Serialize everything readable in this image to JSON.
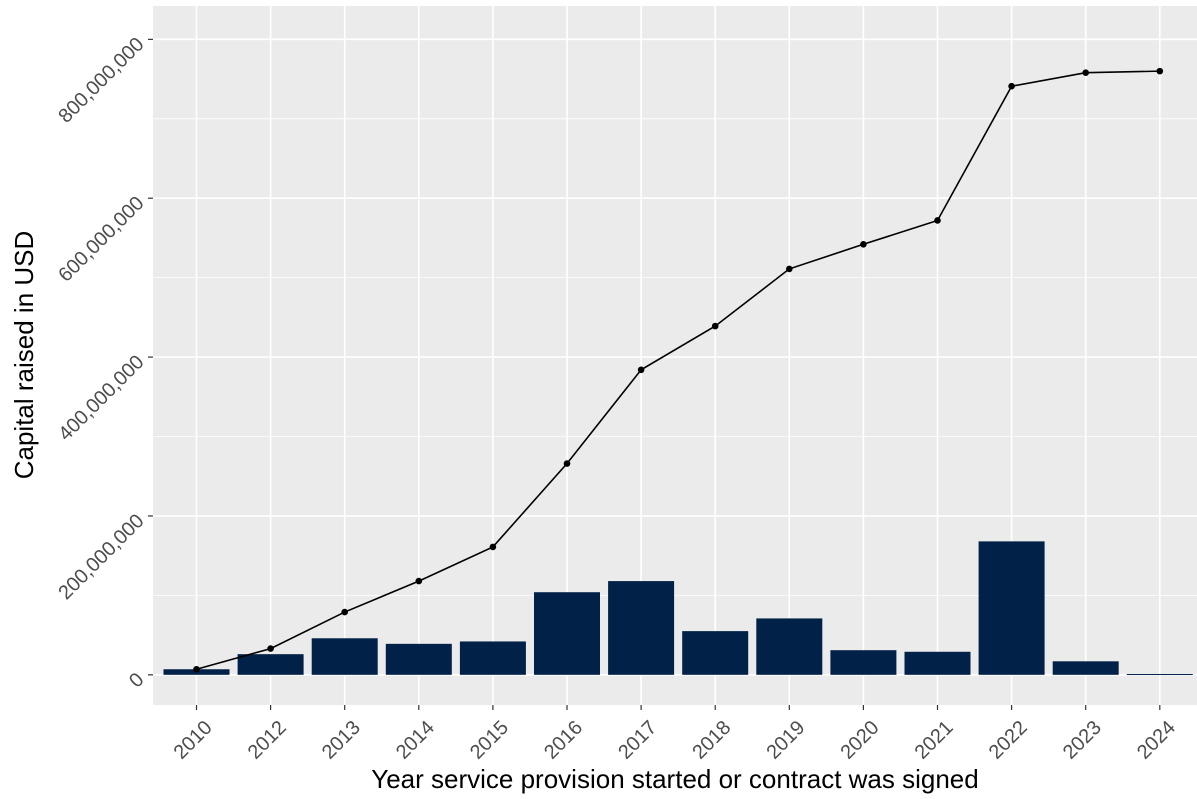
{
  "chart_data": {
    "type": "bar",
    "title": "",
    "xlabel": "Year service provision started or contract was signed",
    "ylabel": "Capital raised in USD",
    "categories": [
      "2010",
      "2012",
      "2013",
      "2014",
      "2015",
      "2016",
      "2017",
      "2018",
      "2019",
      "2020",
      "2021",
      "2022",
      "2023",
      "2024"
    ],
    "series": [
      {
        "type": "bar",
        "values": [
          7000000,
          26000000,
          46000000,
          39000000,
          42000000,
          104000000,
          118000000,
          55000000,
          71000000,
          31000000,
          29000000,
          168000000,
          17000000,
          1000000
        ]
      },
      {
        "type": "line",
        "values": [
          7000000,
          33000000,
          79000000,
          118000000,
          161000000,
          266000000,
          384000000,
          439000000,
          511000000,
          542000000,
          572000000,
          741000000,
          758000000,
          760000000
        ]
      }
    ],
    "ylim": [
      -38000000,
      842000000
    ],
    "yticks": [
      0,
      200000000,
      400000000,
      600000000,
      800000000
    ],
    "ytick_labels": [
      "0",
      "200,000,000",
      "400,000,000",
      "600,000,000",
      "800,000,000"
    ],
    "grid": true,
    "legend": "none",
    "colors": {
      "panel_background": "#ebebeb",
      "grid": "#ffffff",
      "bar": "#022148",
      "line": "#000000"
    }
  }
}
